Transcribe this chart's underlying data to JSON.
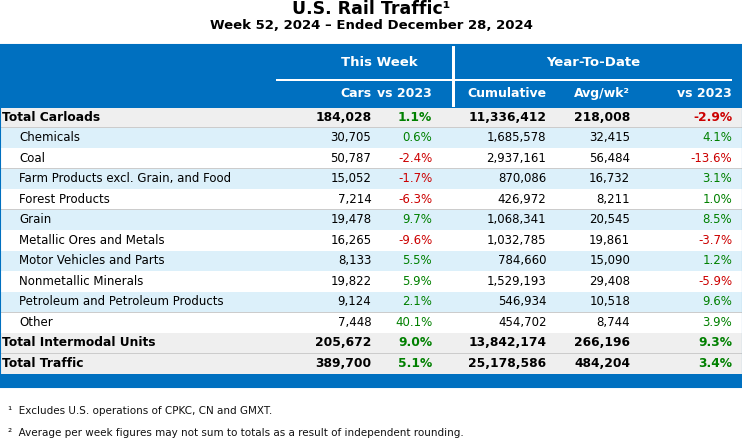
{
  "title": "U.S. Rail Traffic¹",
  "subtitle": "Week 52, 2024 – Ended December 28, 2024",
  "rows": [
    {
      "label": "Total Carloads",
      "bold": true,
      "indent": false,
      "cars": "184,028",
      "vs2023_tw": "1.1%",
      "vs2023_tw_neg": false,
      "cumulative": "11,336,412",
      "avgwk": "218,008",
      "vs2023_ytd": "-2.9%",
      "vs2023_ytd_neg": true
    },
    {
      "label": "Chemicals",
      "bold": false,
      "indent": true,
      "cars": "30,705",
      "vs2023_tw": "0.6%",
      "vs2023_tw_neg": false,
      "cumulative": "1,685,578",
      "avgwk": "32,415",
      "vs2023_ytd": "4.1%",
      "vs2023_ytd_neg": false
    },
    {
      "label": "Coal",
      "bold": false,
      "indent": true,
      "cars": "50,787",
      "vs2023_tw": "-2.4%",
      "vs2023_tw_neg": true,
      "cumulative": "2,937,161",
      "avgwk": "56,484",
      "vs2023_ytd": "-13.6%",
      "vs2023_ytd_neg": true
    },
    {
      "label": "Farm Products excl. Grain, and Food",
      "bold": false,
      "indent": true,
      "cars": "15,052",
      "vs2023_tw": "-1.7%",
      "vs2023_tw_neg": true,
      "cumulative": "870,086",
      "avgwk": "16,732",
      "vs2023_ytd": "3.1%",
      "vs2023_ytd_neg": false
    },
    {
      "label": "Forest Products",
      "bold": false,
      "indent": true,
      "cars": "7,214",
      "vs2023_tw": "-6.3%",
      "vs2023_tw_neg": true,
      "cumulative": "426,972",
      "avgwk": "8,211",
      "vs2023_ytd": "1.0%",
      "vs2023_ytd_neg": false
    },
    {
      "label": "Grain",
      "bold": false,
      "indent": true,
      "cars": "19,478",
      "vs2023_tw": "9.7%",
      "vs2023_tw_neg": false,
      "cumulative": "1,068,341",
      "avgwk": "20,545",
      "vs2023_ytd": "8.5%",
      "vs2023_ytd_neg": false
    },
    {
      "label": "Metallic Ores and Metals",
      "bold": false,
      "indent": true,
      "cars": "16,265",
      "vs2023_tw": "-9.6%",
      "vs2023_tw_neg": true,
      "cumulative": "1,032,785",
      "avgwk": "19,861",
      "vs2023_ytd": "-3.7%",
      "vs2023_ytd_neg": true
    },
    {
      "label": "Motor Vehicles and Parts",
      "bold": false,
      "indent": true,
      "cars": "8,133",
      "vs2023_tw": "5.5%",
      "vs2023_tw_neg": false,
      "cumulative": "784,660",
      "avgwk": "15,090",
      "vs2023_ytd": "1.2%",
      "vs2023_ytd_neg": false
    },
    {
      "label": "Nonmetallic Minerals",
      "bold": false,
      "indent": true,
      "cars": "19,822",
      "vs2023_tw": "5.9%",
      "vs2023_tw_neg": false,
      "cumulative": "1,529,193",
      "avgwk": "29,408",
      "vs2023_ytd": "-5.9%",
      "vs2023_ytd_neg": true
    },
    {
      "label": "Petroleum and Petroleum Products",
      "bold": false,
      "indent": true,
      "cars": "9,124",
      "vs2023_tw": "2.1%",
      "vs2023_tw_neg": false,
      "cumulative": "546,934",
      "avgwk": "10,518",
      "vs2023_ytd": "9.6%",
      "vs2023_ytd_neg": false
    },
    {
      "label": "Other",
      "bold": false,
      "indent": true,
      "cars": "7,448",
      "vs2023_tw": "40.1%",
      "vs2023_tw_neg": false,
      "cumulative": "454,702",
      "avgwk": "8,744",
      "vs2023_ytd": "3.9%",
      "vs2023_ytd_neg": false
    },
    {
      "label": "Total Intermodal Units",
      "bold": true,
      "indent": false,
      "cars": "205,672",
      "vs2023_tw": "9.0%",
      "vs2023_tw_neg": false,
      "cumulative": "13,842,174",
      "avgwk": "266,196",
      "vs2023_ytd": "9.3%",
      "vs2023_ytd_neg": false
    },
    {
      "label": "Total Traffic",
      "bold": true,
      "indent": false,
      "cars": "389,700",
      "vs2023_tw": "5.1%",
      "vs2023_tw_neg": false,
      "cumulative": "25,178,586",
      "avgwk": "484,204",
      "vs2023_ytd": "3.4%",
      "vs2023_ytd_neg": false
    }
  ],
  "footnotes": [
    "¹  Excludes U.S. operations of CPKC, CN and GMXT.",
    "²  Average per week figures may not sum to totals as a result of independent rounding."
  ],
  "color_positive": "#008000",
  "color_negative": "#CC0000",
  "color_white": "#FFFFFF",
  "color_header_bg": "#0070C0",
  "color_row_alt": "#DCF0FA",
  "color_row_plain": "#FFFFFF",
  "color_bold_row_alt": "#E8E8E8",
  "color_bold_row_plain": "#F0F0F0"
}
